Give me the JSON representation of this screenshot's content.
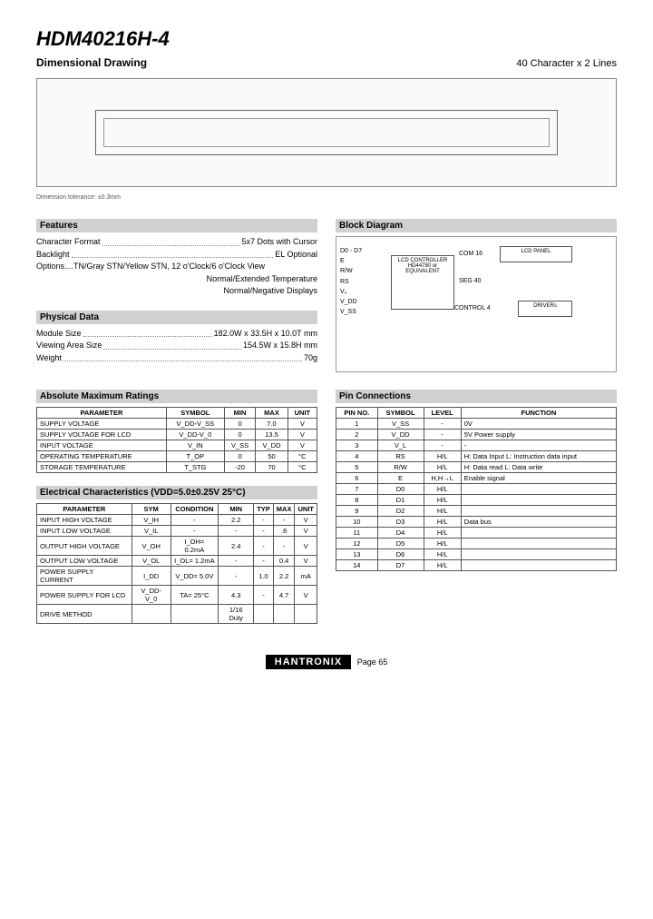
{
  "header": {
    "title": "HDM40216H-4",
    "subtitle": "Dimensional Drawing",
    "right": "40 Character x 2 Lines",
    "tolerance": "Dimension tolerance: ±0.3mm"
  },
  "features": {
    "heading": "Features",
    "rows": [
      {
        "k": "Character Format",
        "v": "5x7 Dots with Cursor"
      },
      {
        "k": "Backlight",
        "v": "EL Optional"
      },
      {
        "k": "Options....TN/Gray STN/Yellow STN, 12 o'Clock/6 o'Clock View",
        "v": ""
      }
    ],
    "extra": [
      "Normal/Extended Temperature",
      "Normal/Negative Displays"
    ]
  },
  "physical": {
    "heading": "Physical Data",
    "rows": [
      {
        "k": "Module Size",
        "v": "182.0W x 33.5H x 10.0T mm"
      },
      {
        "k": "Viewing Area Size",
        "v": "154.5W x 15.8H mm"
      },
      {
        "k": "Weight",
        "v": "70g"
      }
    ]
  },
  "blockdiagram": {
    "heading": "Block Diagram",
    "signals": [
      "D0 - D7",
      "E",
      "R/W",
      "RS",
      "V₀",
      "V_DD",
      "V_SS"
    ],
    "ctrl": "LCD CONTROLLER HD44780 or EQUIVALENT",
    "panel": "LCD PANEL",
    "driver": "DRIVERs",
    "control4": "CONTROL 4",
    "com": "COM 16",
    "seg": "SEG 40"
  },
  "abs": {
    "heading": "Absolute Maximum Ratings",
    "cols": [
      "PARAMETER",
      "SYMBOL",
      "MIN",
      "MAX",
      "UNIT"
    ],
    "rows": [
      [
        "SUPPLY VOLTAGE",
        "V_DD-V_SS",
        "0",
        "7.0",
        "V"
      ],
      [
        "SUPPLY VOLTAGE FOR LCD",
        "V_DD-V_0",
        "0",
        "13.5",
        "V"
      ],
      [
        "INPUT VOLTAGE",
        "V_IN",
        "V_SS",
        "V_DD",
        "V"
      ],
      [
        "OPERATING TEMPERATURE",
        "T_OP",
        "0",
        "50",
        "°C"
      ],
      [
        "STORAGE TEMPERATURE",
        "T_STG",
        "-20",
        "70",
        "°C"
      ]
    ]
  },
  "elec": {
    "heading": "Electrical Characteristics (VDD=5.0±0.25V 25°C)",
    "cols": [
      "PARAMETER",
      "SYM",
      "CONDITION",
      "MIN",
      "TYP",
      "MAX",
      "UNIT"
    ],
    "rows": [
      [
        "INPUT HIGH VOLTAGE",
        "V_IH",
        "-",
        "2.2",
        "-",
        "-",
        "V"
      ],
      [
        "INPUT LOW VOLTAGE",
        "V_IL",
        "-",
        "-",
        "-",
        ".6",
        "V"
      ],
      [
        "OUTPUT HIGH VOLTAGE",
        "V_OH",
        "I_OH= 0.2mA",
        "2.4",
        "-",
        "-",
        "V"
      ],
      [
        "OUTPUT LOW VOLTAGE",
        "V_OL",
        "I_OL= 1.2mA",
        "-",
        "-",
        "0.4",
        "V"
      ],
      [
        "POWER SUPPLY CURRENT",
        "I_DD",
        "V_DD= 5.0V",
        "-",
        "1.0",
        "2.2",
        "mA"
      ],
      [
        "POWER SUPPLY FOR LCD",
        "V_DD-V_0",
        "TA= 25°C",
        "4.3",
        "-",
        "4.7",
        "V"
      ],
      [
        "DRIVE METHOD",
        "",
        "",
        "1/16 Duty",
        "",
        "",
        ""
      ]
    ]
  },
  "pins": {
    "heading": "Pin Connections",
    "cols": [
      "PIN NO.",
      "SYMBOL",
      "LEVEL",
      "FUNCTION"
    ],
    "rows": [
      [
        "1",
        "V_SS",
        "-",
        "0V"
      ],
      [
        "2",
        "V_DD",
        "-",
        "5V  Power supply"
      ],
      [
        "3",
        "V_L",
        "-",
        "-"
      ],
      [
        "4",
        "RS",
        "H/L",
        "H: Data Input  L: Instruction data input"
      ],
      [
        "5",
        "R/W",
        "H/L",
        "H: Data read  L: Data write"
      ],
      [
        "6",
        "E",
        "H,H→L",
        "Enable signal"
      ],
      [
        "7",
        "D0",
        "H/L",
        ""
      ],
      [
        "8",
        "D1",
        "H/L",
        ""
      ],
      [
        "9",
        "D2",
        "H/L",
        ""
      ],
      [
        "10",
        "D3",
        "H/L",
        "Data bus"
      ],
      [
        "11",
        "D4",
        "H/L",
        ""
      ],
      [
        "12",
        "D5",
        "H/L",
        ""
      ],
      [
        "13",
        "D6",
        "H/L",
        ""
      ],
      [
        "14",
        "D7",
        "H/L",
        ""
      ]
    ]
  },
  "footer": {
    "brand": "HANTRONIX",
    "page": "Page 65"
  }
}
